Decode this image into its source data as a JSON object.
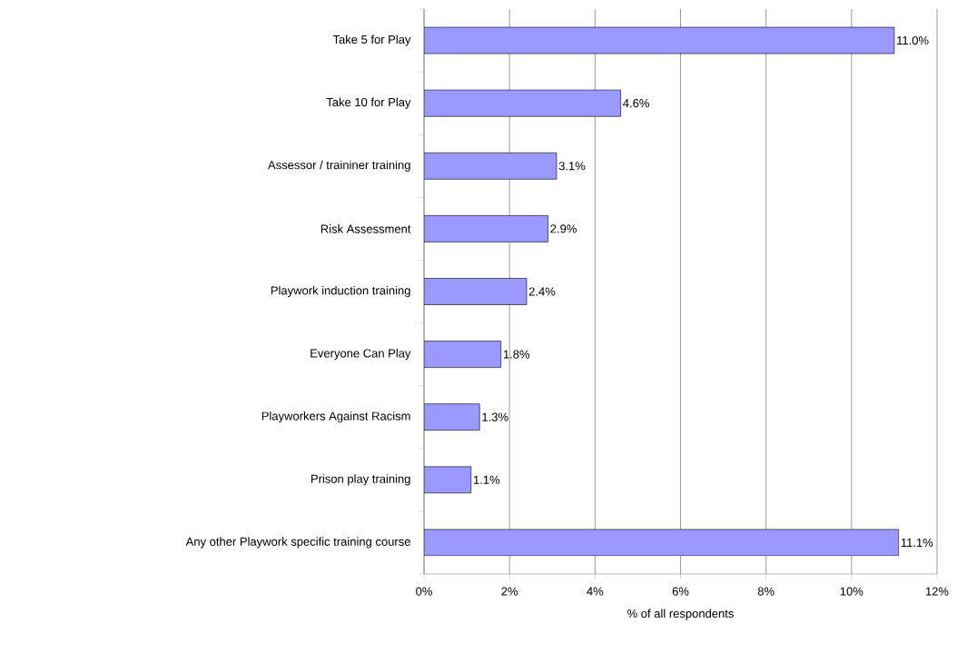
{
  "chart_data": {
    "type": "bar",
    "orientation": "horizontal",
    "xlabel": "% of all respondents",
    "categories": [
      "Take 5 for Play",
      "Take 10 for Play",
      "Assessor / traininer training",
      "Risk Assessment",
      "Playwork induction training",
      "Everyone Can Play",
      "Playworkers Against Racism",
      "Prison play training",
      "Any other Playwork specific training course"
    ],
    "values": [
      11.0,
      4.6,
      3.1,
      2.9,
      2.4,
      1.8,
      1.3,
      1.1,
      11.1
    ],
    "value_labels": [
      "11.0%",
      "4.6%",
      "3.1%",
      "2.9%",
      "2.4%",
      "1.8%",
      "1.3%",
      "1.1%",
      "11.1%"
    ],
    "color": "#9999ff",
    "xlim": [
      0,
      12
    ],
    "xticks": [
      {
        "value": 0,
        "label": "0%"
      },
      {
        "value": 2,
        "label": "2%"
      },
      {
        "value": 4,
        "label": "4%"
      },
      {
        "value": 6,
        "label": "6%"
      },
      {
        "value": 8,
        "label": "8%"
      },
      {
        "value": 10,
        "label": "10%"
      },
      {
        "value": 12,
        "label": "12%"
      }
    ],
    "grid": "x"
  }
}
